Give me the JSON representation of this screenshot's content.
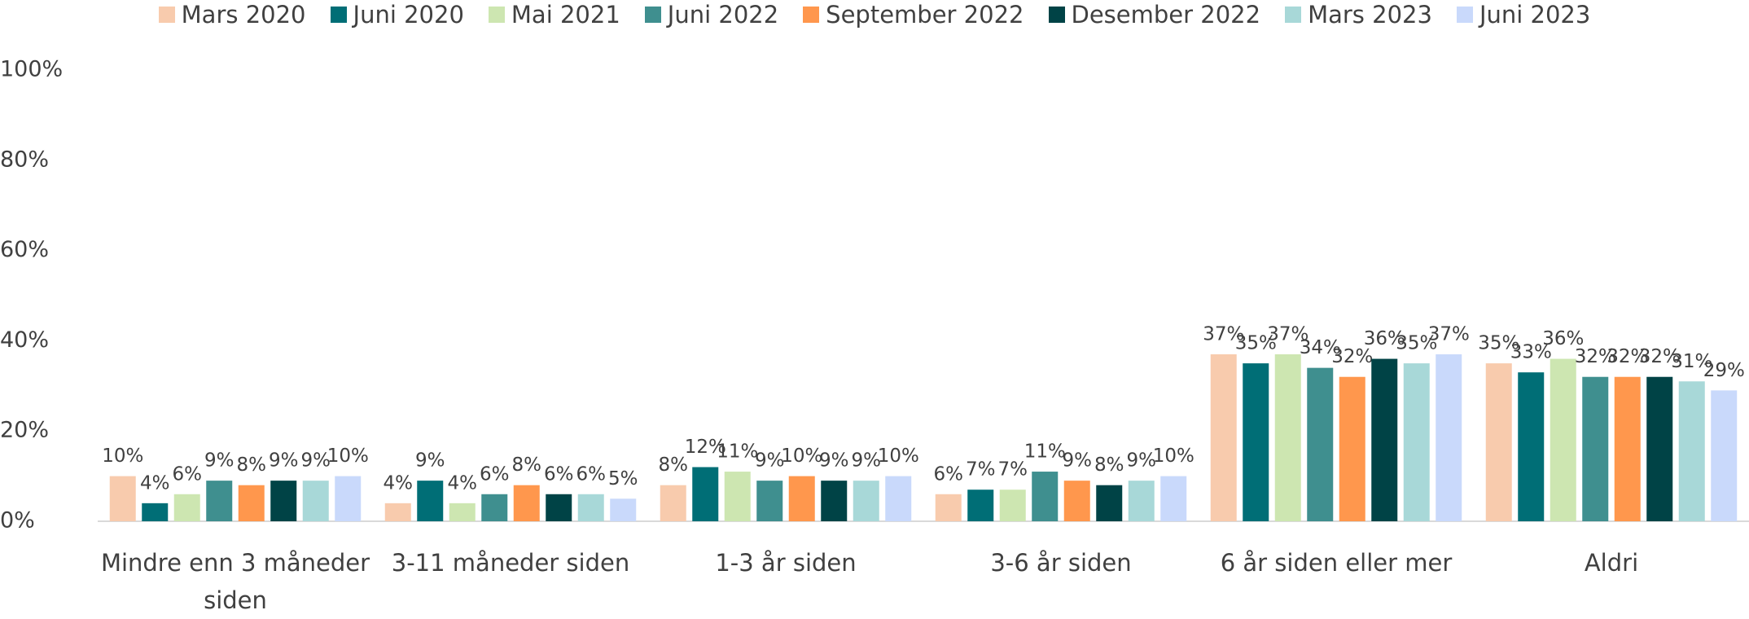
{
  "chart_data": {
    "type": "bar",
    "categories": [
      "Mindre enn 3 måneder siden",
      "3-11 måneder siden",
      "1-3 år siden",
      "3-6 år siden",
      "6 år siden eller mer",
      "Aldri"
    ],
    "series": [
      {
        "name": "Mars 2020",
        "color": "#f8cbad",
        "values": [
          10,
          4,
          8,
          6,
          37,
          35
        ],
        "value_labels": [
          "10%",
          "4%",
          "8%",
          "6%",
          "37%",
          "35%"
        ]
      },
      {
        "name": "Juni 2020",
        "color": "#006e76",
        "values": [
          4,
          9,
          12,
          7,
          35,
          33
        ],
        "value_labels": [
          "4%",
          "9%",
          "12%",
          "7%",
          "35%",
          "33%"
        ]
      },
      {
        "name": "Mai 2021",
        "color": "#cde6b1",
        "values": [
          6,
          4,
          11,
          7,
          37,
          36
        ],
        "value_labels": [
          "6%",
          "4%",
          "11%",
          "7%",
          "37%",
          "36%"
        ]
      },
      {
        "name": "Juni 2022",
        "color": "#3f8f8f",
        "values": [
          9,
          6,
          9,
          11,
          34,
          32
        ],
        "value_labels": [
          "9%",
          "6%",
          "9%",
          "11%",
          "34%",
          "32%"
        ]
      },
      {
        "name": "September 2022",
        "color": "#ff974d",
        "values": [
          8,
          8,
          10,
          9,
          32,
          32
        ],
        "value_labels": [
          "8%",
          "8%",
          "10%",
          "9%",
          "32%",
          "32%"
        ]
      },
      {
        "name": "Desember 2022",
        "color": "#004346",
        "values": [
          9,
          6,
          9,
          8,
          36,
          32
        ],
        "value_labels": [
          "9%",
          "6%",
          "9%",
          "8%",
          "36%",
          "32%"
        ]
      },
      {
        "name": "Mars 2023",
        "color": "#a8d8d8",
        "values": [
          9,
          6,
          9,
          9,
          35,
          31
        ],
        "value_labels": [
          "9%",
          "6%",
          "9%",
          "9%",
          "35%",
          "31%"
        ]
      },
      {
        "name": "Juni 2023",
        "color": "#c9d9fb",
        "values": [
          10,
          5,
          10,
          10,
          37,
          29
        ],
        "value_labels": [
          "10%",
          "5%",
          "10%",
          "10%",
          "37%",
          "29%"
        ]
      }
    ],
    "ylim": [
      0,
      100
    ],
    "yticks": [
      {
        "value": 0,
        "label": "0%"
      },
      {
        "value": 20,
        "label": "20%"
      },
      {
        "value": 40,
        "label": "40%"
      },
      {
        "value": 60,
        "label": "60%"
      },
      {
        "value": 80,
        "label": "80%"
      },
      {
        "value": 100,
        "label": "100%"
      }
    ],
    "grid": false,
    "legend": "top"
  }
}
